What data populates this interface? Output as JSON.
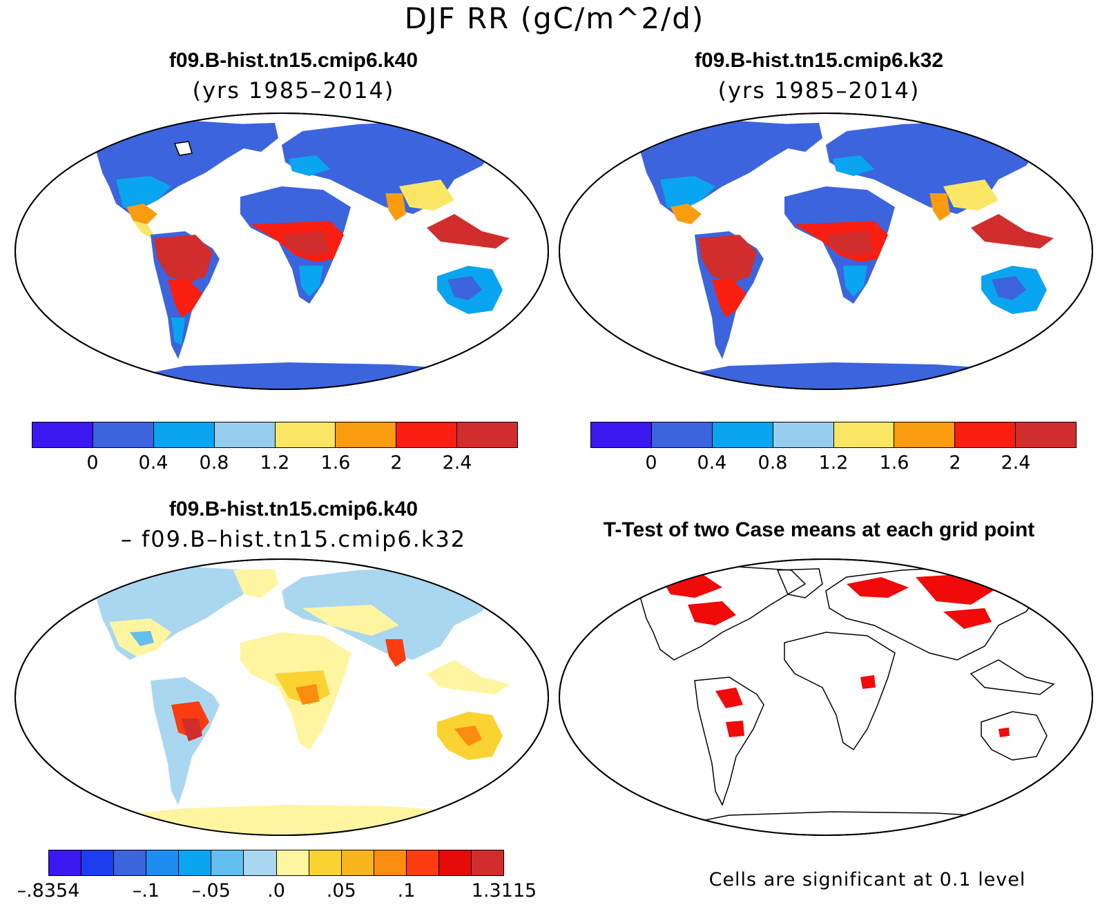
{
  "title": "DJF RR (gC/m^2/d)",
  "panels": {
    "top_left": {
      "title": "f09.B-hist.tn15.cmip6.k40",
      "subtitle": "(yrs 1985–2014)"
    },
    "top_right": {
      "title": "f09.B-hist.tn15.cmip6.k32",
      "subtitle": "(yrs 1985–2014)"
    },
    "bottom_left": {
      "title": "f09.B-hist.tn15.cmip6.k40",
      "subtitle": "– f09.B–hist.tn15.cmip6.k32"
    },
    "bottom_right": {
      "title": "T-Test of two Case means at each grid point",
      "note": "Cells are significant at 0.1 level"
    }
  },
  "colorbar_main": {
    "colors": [
      "#3b17f0",
      "#3c64dc",
      "#0aa5f0",
      "#96cdee",
      "#fae664",
      "#fa9c10",
      "#fa1e10",
      "#d22d2d"
    ],
    "ticks": [
      "0",
      "0.4",
      "0.8",
      "1.2",
      "1.6",
      "2",
      "2.4"
    ]
  },
  "colorbar_diff": {
    "colors": [
      "#3b17f0",
      "#1e3cf0",
      "#3c64dc",
      "#1e8cf0",
      "#0aa5f0",
      "#64bef0",
      "#aad7f0",
      "#fff5a0",
      "#fad232",
      "#fab41e",
      "#fa8c10",
      "#fa3c10",
      "#e60a0a",
      "#d22d2d"
    ],
    "ticks": [
      "–.8354",
      "–.1",
      "–.05",
      ".0",
      ".05",
      ".1",
      "1.3115"
    ]
  },
  "icons": {
    "map": "world-map-robinson"
  }
}
